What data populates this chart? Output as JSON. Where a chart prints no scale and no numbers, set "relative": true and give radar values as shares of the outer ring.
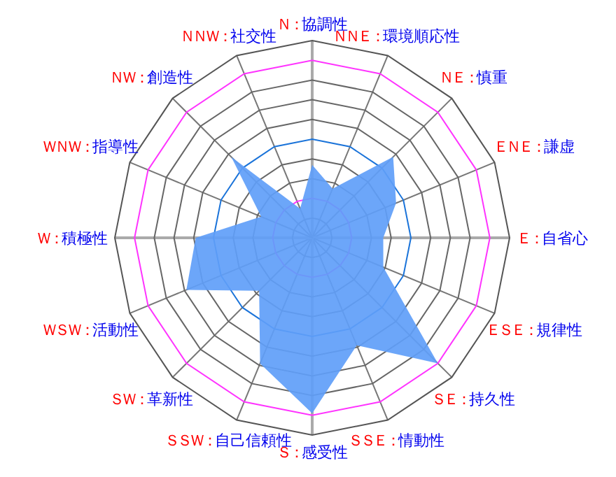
{
  "chart_data": {
    "type": "radar",
    "relative": true,
    "grid": true,
    "categories": [
      "Ｎ：協調性",
      "ＮＮＥ：環境順応性",
      "ＮＥ：慎重",
      "ＥＮＥ：謙虚",
      "Ｅ：自省心",
      "ＥＳＥ：規律性",
      "ＳＥ：持久性",
      "ＳＳＥ：情動性",
      "Ｓ：感受性",
      "ＳＳＷ：自己信頼性",
      "ＳＷ：革新性",
      "ＷＳＷ：活動性",
      "Ｗ：積極性",
      "ＷＮＷ：指導性",
      "ＮＷ：創造性",
      "ＮＮＷ：社交性"
    ],
    "series": [
      {
        "color": "#5f9ef8",
        "values": [
          0.37,
          0.27,
          0.58,
          0.46,
          0.36,
          0.39,
          0.9,
          0.59,
          0.89,
          0.69,
          0.38,
          0.69,
          0.59,
          0.28,
          0.58,
          0.16
        ]
      }
    ]
  }
}
